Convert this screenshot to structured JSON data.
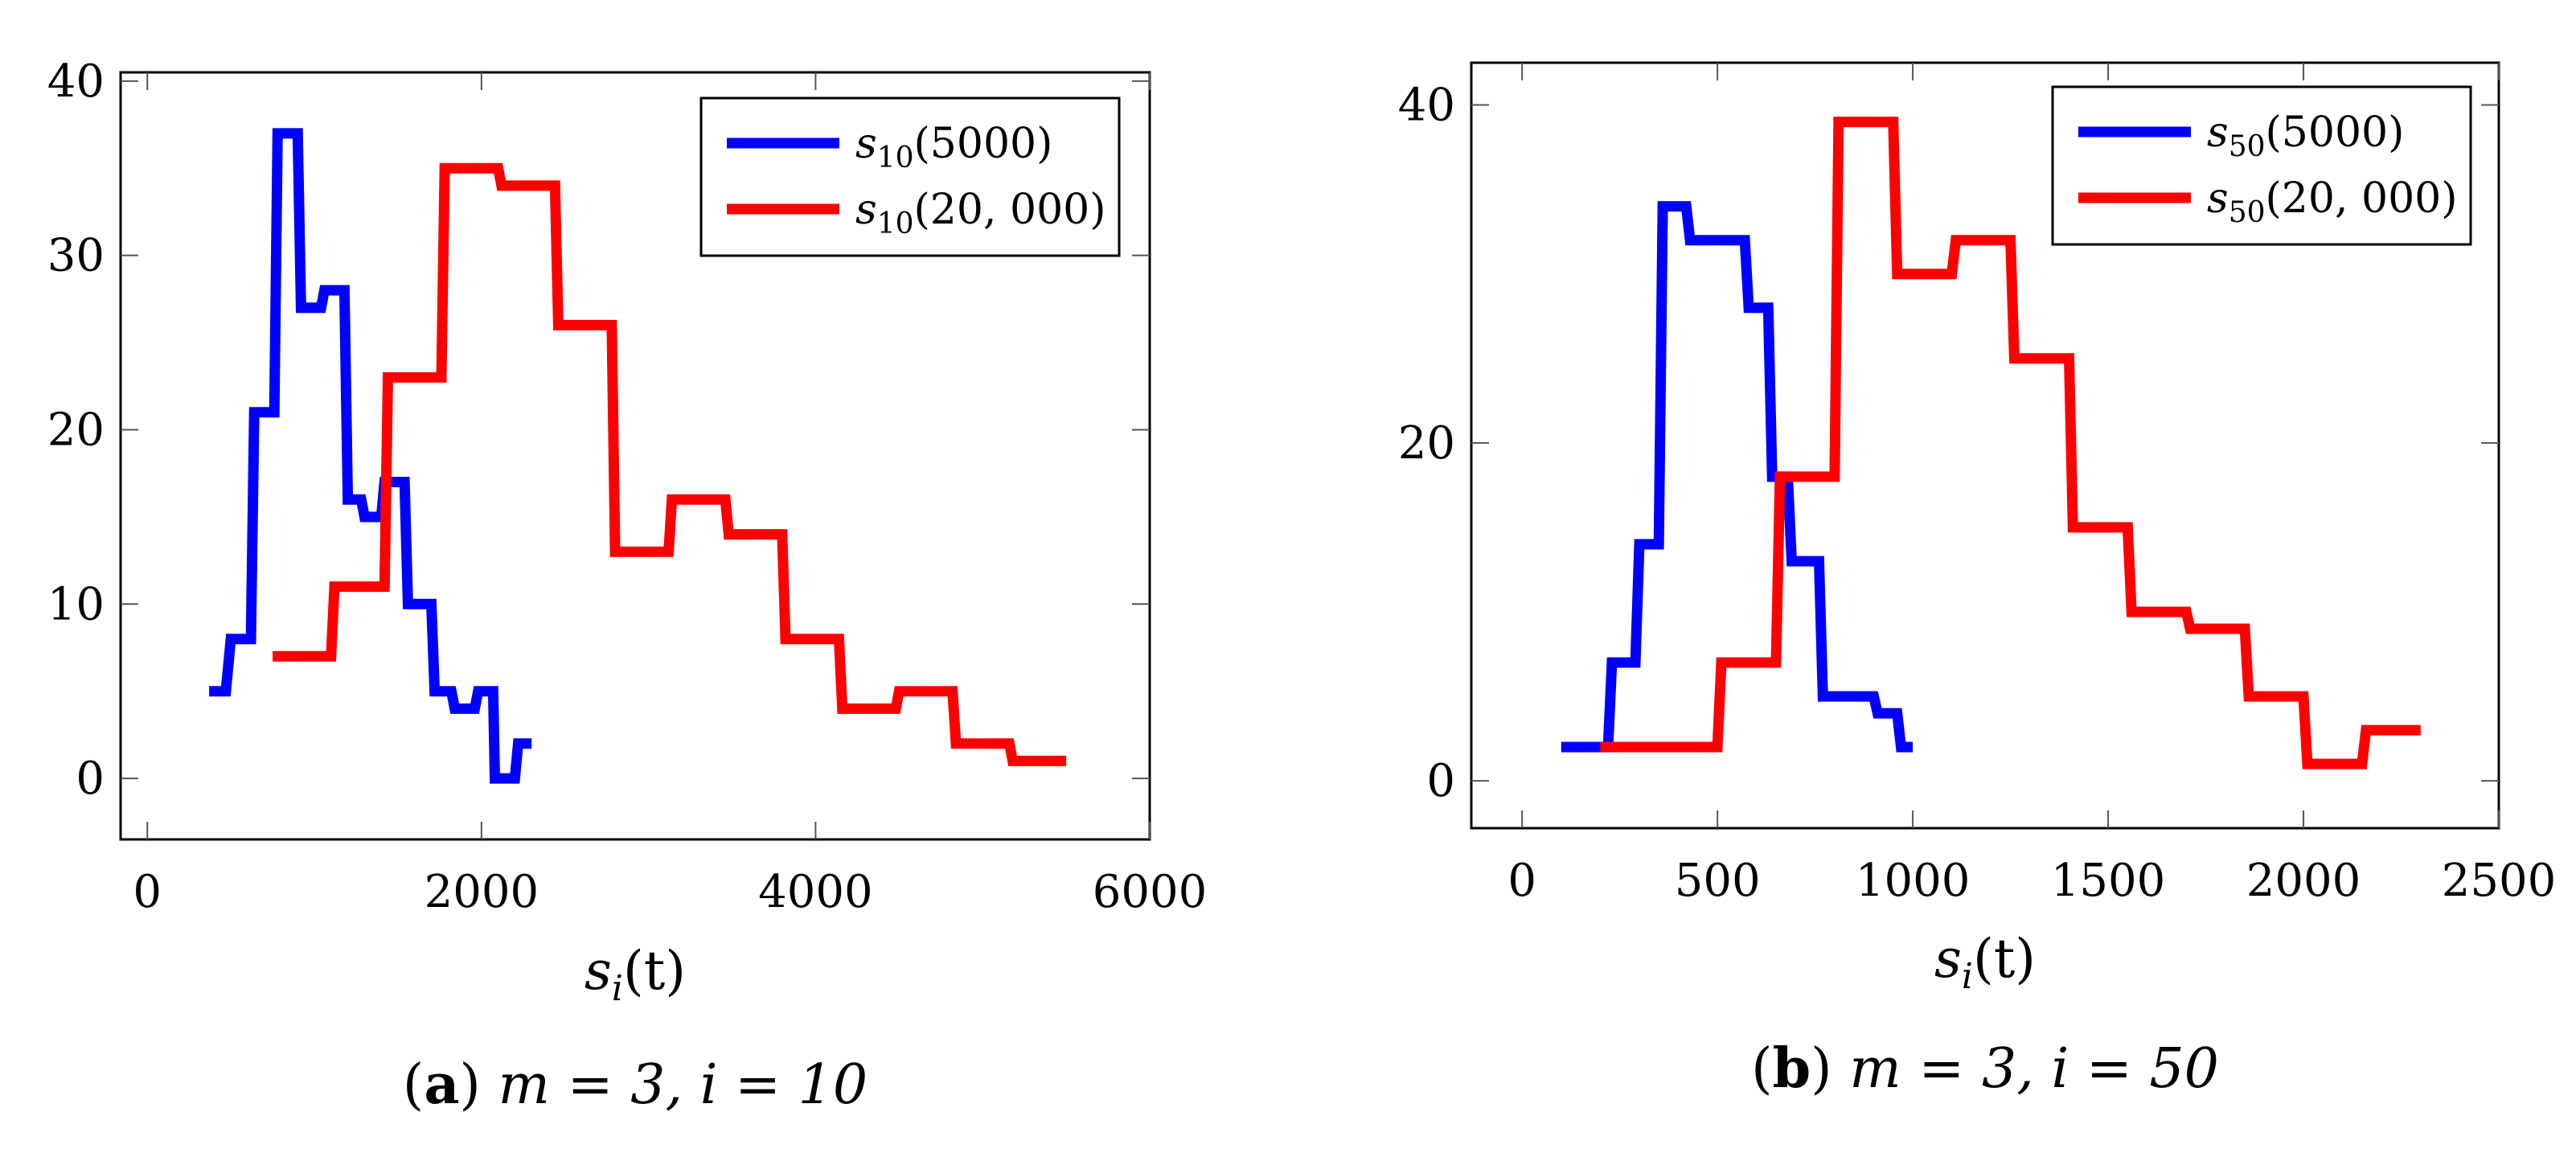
{
  "chart_data": [
    {
      "type": "line",
      "step": true,
      "xlabel": "s_i(t)",
      "ylabel": "",
      "xlim": [
        -160,
        6000
      ],
      "ylim": [
        -3.5,
        40.5
      ],
      "xticks": [
        0,
        2000,
        4000,
        6000
      ],
      "yticks": [
        0,
        10,
        20,
        30,
        40
      ],
      "xtick_labels": [
        "0",
        "2000",
        "4000",
        "6000"
      ],
      "ytick_labels": [
        "0",
        "10",
        "20",
        "30",
        "40"
      ],
      "grid": false,
      "legend_position": "top-right",
      "caption": {
        "label": "a",
        "text": "m = 3, i = 10"
      },
      "series": [
        {
          "name": "s10(5000)",
          "legend_base": "s",
          "legend_sub": "10",
          "legend_arg": "(5000)",
          "color": "#0000ff",
          "x": [
            370,
            470,
            500,
            620,
            640,
            760,
            780,
            900,
            920,
            1040,
            1060,
            1180,
            1200,
            1280,
            1300,
            1400,
            1420,
            1540,
            1560,
            1700,
            1720,
            1820,
            1840,
            1960,
            1980,
            2070,
            2080,
            2200,
            2220,
            2300
          ],
          "y": [
            5,
            5,
            8,
            8,
            21,
            21,
            37,
            37,
            27,
            27,
            28,
            28,
            16,
            16,
            15,
            15,
            17,
            17,
            10,
            10,
            5,
            5,
            4,
            4,
            5,
            5,
            0,
            0,
            2,
            2
          ]
        },
        {
          "name": "s10(20,000)",
          "legend_base": "s",
          "legend_sub": "10",
          "legend_arg": "(20, 000)",
          "color": "#ff0000",
          "x": [
            750,
            1100,
            1120,
            1420,
            1440,
            1760,
            1780,
            2100,
            2120,
            2440,
            2460,
            2780,
            2800,
            3120,
            3140,
            3460,
            3480,
            3800,
            3820,
            4140,
            4160,
            4480,
            4500,
            4820,
            4840,
            5160,
            5180,
            5500
          ],
          "y": [
            7,
            7,
            11,
            11,
            23,
            23,
            35,
            35,
            34,
            34,
            26,
            26,
            13,
            13,
            16,
            16,
            14,
            14,
            8,
            8,
            4,
            4,
            5,
            5,
            2,
            2,
            1,
            1
          ]
        }
      ]
    },
    {
      "type": "line",
      "step": true,
      "xlabel": "s_i(t)",
      "ylabel": "",
      "xlim": [
        -130,
        2500
      ],
      "ylim": [
        -2.8,
        42.5
      ],
      "xticks": [
        0,
        500,
        1000,
        1500,
        2000,
        2500
      ],
      "yticks": [
        0,
        20,
        40
      ],
      "xtick_labels": [
        "0",
        "500",
        "1000",
        "1500",
        "2000",
        "2500"
      ],
      "ytick_labels": [
        "0",
        "20",
        "40"
      ],
      "grid": false,
      "legend_position": "top-right",
      "caption": {
        "label": "b",
        "text": "m = 3, i = 50"
      },
      "series": [
        {
          "name": "s50(5000)",
          "legend_base": "s",
          "legend_sub": "50",
          "legend_arg": "(5000)",
          "color": "#0000ff",
          "x": [
            100,
            220,
            230,
            290,
            300,
            350,
            360,
            420,
            430,
            570,
            580,
            630,
            640,
            680,
            690,
            760,
            770,
            900,
            910,
            960,
            970,
            1000
          ],
          "y": [
            2,
            2,
            7,
            7,
            14,
            14,
            34,
            34,
            32,
            32,
            28,
            28,
            18,
            18,
            13,
            13,
            5,
            5,
            4,
            4,
            2,
            2
          ]
        },
        {
          "name": "s50(20,000)",
          "legend_base": "s",
          "legend_sub": "50",
          "legend_arg": "(20, 000)",
          "color": "#ff0000",
          "x": [
            200,
            500,
            510,
            650,
            660,
            800,
            810,
            950,
            960,
            1100,
            1110,
            1250,
            1260,
            1400,
            1410,
            1550,
            1560,
            1700,
            1710,
            1850,
            1860,
            2000,
            2010,
            2150,
            2160,
            2300
          ],
          "y": [
            2,
            2,
            7,
            7,
            18,
            18,
            39,
            39,
            30,
            30,
            32,
            32,
            25,
            25,
            15,
            15,
            10,
            10,
            9,
            9,
            5,
            5,
            1,
            1,
            3,
            3
          ]
        }
      ]
    }
  ]
}
